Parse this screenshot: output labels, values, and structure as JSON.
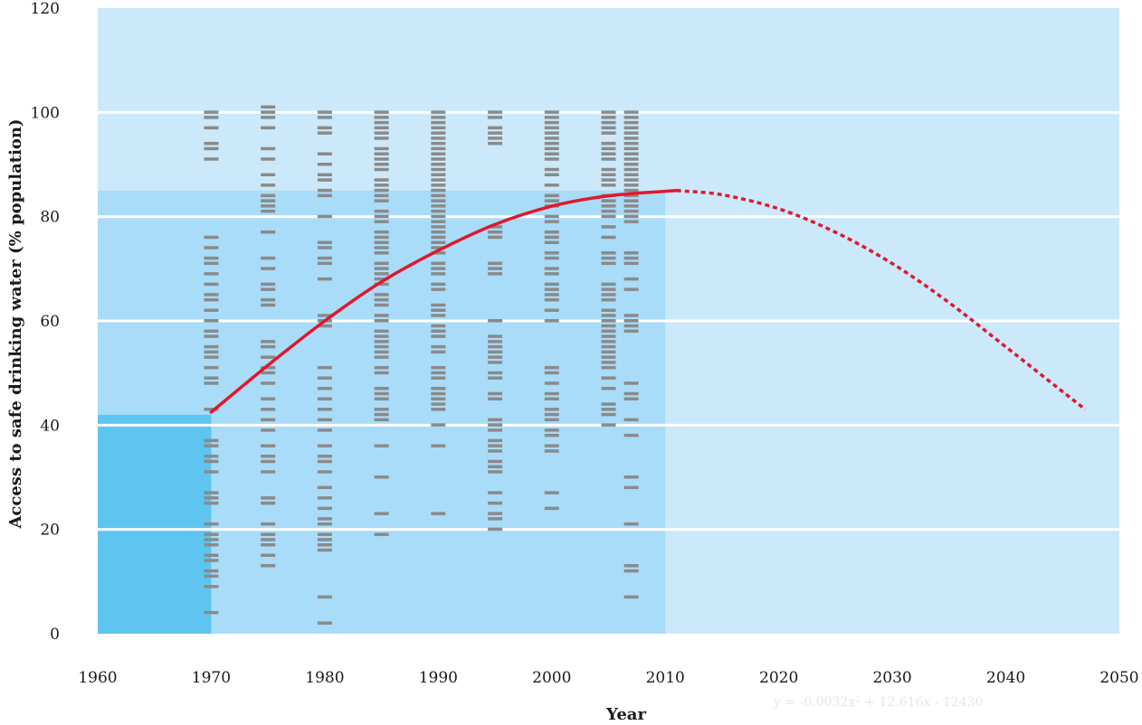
{
  "chart_data": {
    "type": "scatter",
    "title": "",
    "xlabel": "Year",
    "ylabel": "Access to safe drinking water (% population)",
    "xlim": [
      1960,
      2050
    ],
    "ylim": [
      0,
      120
    ],
    "x_ticks": [
      "1960",
      "1970",
      "1980",
      "1990",
      "2000",
      "2010",
      "2020",
      "2030",
      "2040",
      "2050"
    ],
    "y_ticks": [
      "0",
      "20",
      "40",
      "60",
      "80",
      "100",
      "120"
    ],
    "grid": "horizontal",
    "equation_text": "y = -0.0032x² + 12.616x - 12430",
    "colors": {
      "background": "#cbe9fa",
      "data_region": "#a9dcf8",
      "band_1970": "#5ec5f0",
      "marker": "#8a8a8a",
      "trend": "#e0182d",
      "gridline": "#ffffff"
    },
    "regions": [
      {
        "x": [
          1960,
          1970
        ],
        "y": [
          0,
          42
        ]
      },
      {
        "x": [
          1960,
          2010
        ],
        "y": [
          0,
          85
        ]
      }
    ],
    "series": [
      {
        "x": 1970,
        "values": [
          100,
          99,
          97,
          94,
          93,
          91,
          76,
          74,
          72,
          71,
          69,
          67,
          65,
          64,
          62,
          60,
          58,
          57,
          55,
          54,
          53,
          51,
          49,
          48,
          43,
          37,
          36,
          34,
          33,
          31,
          27,
          26,
          25,
          21,
          19,
          18,
          17,
          15,
          14,
          12,
          11,
          9,
          4
        ]
      },
      {
        "x": 1975,
        "values": [
          101,
          100,
          99,
          97,
          93,
          91,
          88,
          86,
          84,
          83,
          82,
          81,
          77,
          72,
          70,
          67,
          66,
          64,
          63,
          56,
          55,
          53,
          51,
          50,
          48,
          45,
          43,
          41,
          39,
          36,
          34,
          33,
          31,
          26,
          25,
          21,
          19,
          18,
          17,
          15,
          13
        ]
      },
      {
        "x": 1980,
        "values": [
          100,
          99,
          97,
          96,
          92,
          90,
          88,
          87,
          85,
          84,
          80,
          75,
          74,
          72,
          71,
          68,
          61,
          60,
          59,
          51,
          49,
          47,
          45,
          43,
          41,
          39,
          36,
          34,
          33,
          31,
          28,
          26,
          24,
          22,
          21,
          19,
          18,
          17,
          16,
          7,
          2
        ]
      },
      {
        "x": 1985,
        "values": [
          100,
          99,
          98,
          97,
          96,
          95,
          93,
          92,
          91,
          90,
          89,
          87,
          86,
          85,
          84,
          83,
          81,
          80,
          79,
          77,
          76,
          75,
          74,
          73,
          71,
          70,
          69,
          68,
          67,
          65,
          64,
          63,
          61,
          60,
          58,
          57,
          56,
          55,
          54,
          53,
          51,
          50,
          47,
          46,
          45,
          43,
          42,
          41,
          36,
          30,
          23,
          19
        ]
      },
      {
        "x": 1990,
        "values": [
          100,
          99,
          98,
          97,
          96,
          95,
          94,
          93,
          92,
          91,
          90,
          89,
          88,
          87,
          86,
          85,
          84,
          83,
          82,
          81,
          80,
          79,
          78,
          77,
          76,
          75,
          74,
          73,
          71,
          70,
          69,
          67,
          66,
          63,
          62,
          61,
          59,
          58,
          57,
          55,
          54,
          51,
          50,
          49,
          47,
          46,
          45,
          44,
          43,
          40,
          36,
          23
        ]
      },
      {
        "x": 1995,
        "values": [
          100,
          99,
          97,
          96,
          95,
          94,
          78,
          77,
          76,
          71,
          70,
          69,
          60,
          57,
          56,
          55,
          54,
          53,
          52,
          50,
          49,
          46,
          45,
          41,
          40,
          39,
          37,
          36,
          35,
          33,
          32,
          31,
          27,
          25,
          23,
          22,
          20
        ]
      },
      {
        "x": 2000,
        "values": [
          100,
          99,
          98,
          97,
          96,
          95,
          94,
          93,
          92,
          91,
          89,
          88,
          86,
          84,
          83,
          82,
          80,
          79,
          77,
          76,
          75,
          73,
          72,
          70,
          69,
          67,
          66,
          65,
          64,
          62,
          60,
          51,
          50,
          48,
          46,
          45,
          43,
          42,
          41,
          39,
          38,
          36,
          35,
          27,
          24
        ]
      },
      {
        "x": 2005,
        "values": [
          100,
          99,
          98,
          97,
          96,
          94,
          93,
          92,
          91,
          89,
          88,
          87,
          86,
          84,
          83,
          82,
          81,
          80,
          78,
          76,
          73,
          72,
          71,
          67,
          66,
          65,
          64,
          62,
          61,
          60,
          59,
          58,
          57,
          56,
          55,
          54,
          53,
          52,
          51,
          49,
          47,
          44,
          43,
          42,
          40
        ]
      },
      {
        "x": 2007,
        "values": [
          100,
          99,
          98,
          97,
          96,
          95,
          94,
          93,
          92,
          91,
          90,
          89,
          88,
          87,
          86,
          85,
          84,
          83,
          82,
          81,
          80,
          79,
          73,
          72,
          71,
          68,
          66,
          61,
          60,
          59,
          58,
          48,
          46,
          45,
          41,
          38,
          30,
          28,
          21,
          13,
          12,
          7
        ]
      }
    ],
    "trend": {
      "solid_x": [
        1970,
        2011
      ],
      "dotted_x": [
        2011,
        2047
      ],
      "points": [
        {
          "x": 1970,
          "y": 42.5
        },
        {
          "x": 1975,
          "y": 51.5
        },
        {
          "x": 1980,
          "y": 60
        },
        {
          "x": 1985,
          "y": 67.5
        },
        {
          "x": 1990,
          "y": 73.5
        },
        {
          "x": 1995,
          "y": 78.5
        },
        {
          "x": 2000,
          "y": 82
        },
        {
          "x": 2005,
          "y": 84
        },
        {
          "x": 2011,
          "y": 85
        },
        {
          "x": 2015,
          "y": 84.2
        },
        {
          "x": 2020,
          "y": 81.5
        },
        {
          "x": 2025,
          "y": 77
        },
        {
          "x": 2030,
          "y": 71
        },
        {
          "x": 2035,
          "y": 63.5
        },
        {
          "x": 2040,
          "y": 55
        },
        {
          "x": 2047,
          "y": 43
        }
      ]
    }
  }
}
